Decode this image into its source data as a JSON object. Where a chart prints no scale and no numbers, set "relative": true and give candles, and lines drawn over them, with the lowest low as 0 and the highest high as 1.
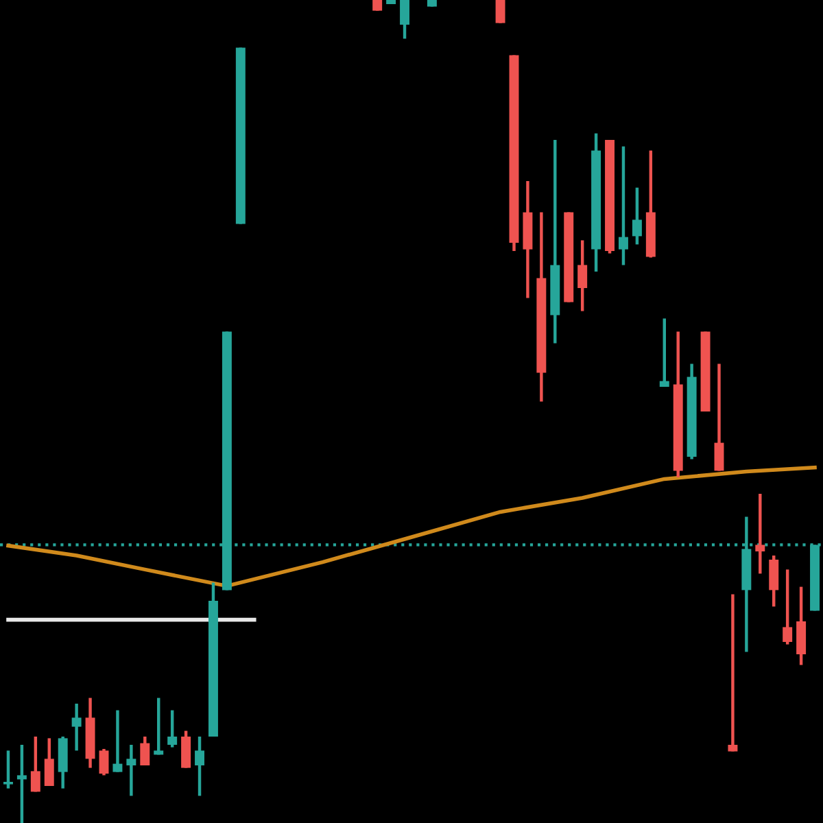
{
  "chart_data": {
    "type": "candlestick",
    "relative": true,
    "legend": false,
    "categories": [
      null,
      null,
      null,
      null,
      null,
      null,
      null,
      null,
      null,
      null,
      null,
      null,
      null,
      null,
      null,
      null,
      null,
      null,
      null,
      null,
      null,
      null,
      null,
      null,
      null,
      null,
      null,
      null,
      null,
      null,
      null,
      null,
      null,
      null,
      null,
      null,
      null,
      null,
      null,
      null,
      null,
      null,
      null,
      null,
      null,
      null,
      null,
      null,
      null,
      null,
      null,
      null,
      null,
      null,
      null,
      null,
      null,
      null,
      null,
      null
    ],
    "ohlc": [
      [
        0.047,
        0.088,
        0.042,
        0.05
      ],
      [
        0.053,
        0.095,
        0.0,
        0.058
      ],
      [
        0.063,
        0.105,
        0.038,
        0.038
      ],
      [
        0.078,
        0.103,
        0.045,
        0.045
      ],
      [
        0.062,
        0.105,
        0.042,
        0.103
      ],
      [
        0.117,
        0.145,
        0.088,
        0.128
      ],
      [
        0.128,
        0.152,
        0.067,
        0.078
      ],
      [
        0.088,
        0.09,
        0.058,
        0.06
      ],
      [
        0.062,
        0.137,
        0.062,
        0.072
      ],
      [
        0.07,
        0.095,
        0.033,
        0.078
      ],
      [
        0.097,
        0.105,
        0.07,
        0.07
      ],
      [
        0.083,
        0.152,
        0.083,
        0.088
      ],
      [
        0.095,
        0.137,
        0.092,
        0.105
      ],
      [
        0.105,
        0.112,
        0.067,
        0.067
      ],
      [
        0.07,
        0.105,
        0.033,
        0.088
      ],
      [
        0.105,
        0.292,
        0.105,
        0.27
      ],
      [
        0.283,
        0.597,
        0.283,
        0.597
      ],
      [
        0.728,
        0.942,
        0.728,
        0.942
      ],
      null,
      null,
      null,
      null,
      null,
      null,
      null,
      null,
      null,
      [
        1.0,
        1.0,
        0.987,
        0.987
      ],
      [
        0.995,
        1.0,
        0.995,
        1.0
      ],
      [
        0.97,
        1.0,
        0.953,
        1.0
      ],
      null,
      [
        0.992,
        1.0,
        0.992,
        1.0
      ],
      null,
      null,
      null,
      null,
      [
        1.0,
        1.0,
        0.972,
        0.972
      ],
      [
        0.933,
        0.933,
        0.695,
        0.705
      ],
      [
        0.742,
        0.78,
        0.638,
        0.697
      ],
      [
        0.662,
        0.742,
        0.512,
        0.547
      ],
      [
        0.617,
        0.83,
        0.583,
        0.678
      ],
      [
        0.742,
        0.742,
        0.633,
        0.633
      ],
      [
        0.678,
        0.708,
        0.622,
        0.65
      ],
      [
        0.697,
        0.838,
        0.67,
        0.817
      ],
      [
        0.83,
        0.83,
        0.692,
        0.695
      ],
      [
        0.697,
        0.822,
        0.678,
        0.712
      ],
      [
        0.713,
        0.772,
        0.703,
        0.733
      ],
      [
        0.742,
        0.817,
        0.687,
        0.688
      ],
      [
        0.53,
        0.613,
        0.53,
        0.537
      ],
      [
        0.533,
        0.597,
        0.42,
        0.428
      ],
      [
        0.445,
        0.558,
        0.442,
        0.542
      ],
      [
        0.597,
        0.597,
        0.5,
        0.5
      ],
      [
        0.462,
        0.558,
        0.428,
        0.428
      ],
      [
        0.095,
        0.278,
        0.087,
        0.087
      ],
      [
        0.283,
        0.372,
        0.208,
        0.333
      ],
      [
        0.338,
        0.4,
        0.303,
        0.33
      ],
      [
        0.32,
        0.325,
        0.263,
        0.283
      ],
      [
        0.238,
        0.308,
        0.217,
        0.22
      ],
      [
        0.245,
        0.287,
        0.192,
        0.205
      ],
      [
        0.258,
        0.338,
        0.258,
        0.338
      ]
    ],
    "colors": [
      "#26a69a",
      "#26a69a",
      "#ef5350",
      "#ef5350",
      "#26a69a",
      "#26a69a",
      "#ef5350",
      "#ef5350",
      "#26a69a",
      "#26a69a",
      "#ef5350",
      "#26a69a",
      "#26a69a",
      "#ef5350",
      "#26a69a",
      "#26a69a",
      "#26a69a",
      "#26a69a",
      null,
      null,
      null,
      null,
      null,
      null,
      null,
      null,
      null,
      "#ef5350",
      "#26a69a",
      "#26a69a",
      null,
      "#26a69a",
      null,
      null,
      null,
      null,
      "#ef5350",
      "#ef5350",
      "#ef5350",
      "#ef5350",
      "#26a69a",
      "#ef5350",
      "#ef5350",
      "#26a69a",
      "#ef5350",
      "#26a69a",
      "#26a69a",
      "#ef5350",
      "#26a69a",
      "#ef5350",
      "#26a69a",
      "#ef5350",
      "#ef5350",
      "#ef5350",
      "#26a69a",
      "#ef5350",
      "#ef5350",
      "#ef5350",
      "#ef5350",
      "#26a69a"
    ],
    "series": [
      {
        "type": "line",
        "color": "#d08a1c",
        "values": [
          0.337,
          null,
          null,
          null,
          null,
          0.325,
          null,
          null,
          null,
          null,
          0.308,
          null,
          null,
          null,
          null,
          null,
          0.288,
          null,
          null,
          null,
          null,
          null,
          null,
          0.317,
          null,
          null,
          null,
          null,
          null,
          0.345,
          null,
          null,
          null,
          null,
          null,
          null,
          0.378,
          null,
          null,
          null,
          null,
          null,
          0.395,
          null,
          null,
          null,
          null,
          null,
          0.418,
          null,
          null,
          null,
          null,
          null,
          0.427,
          null,
          null,
          null,
          null,
          0.432
        ]
      },
      {
        "type": "line",
        "color": "#e8e8e8",
        "values": [
          0.247,
          null,
          null,
          null,
          null,
          null,
          null,
          null,
          null,
          null,
          null,
          null,
          null,
          null,
          null,
          null,
          null,
          null,
          0.247,
          null,
          null,
          null,
          null,
          null,
          null,
          null,
          null,
          null,
          null,
          null,
          null,
          null,
          null,
          null,
          null,
          null,
          null,
          null,
          null,
          null,
          null,
          null,
          null,
          null,
          null,
          null,
          null,
          null,
          null,
          null,
          null,
          null,
          null,
          null,
          null,
          null,
          null,
          null,
          null,
          null
        ]
      }
    ],
    "ref_lines": [
      {
        "axis": "y",
        "value": 0.338,
        "label": null,
        "color": "#26a69a",
        "line_style": "dotted"
      }
    ]
  }
}
